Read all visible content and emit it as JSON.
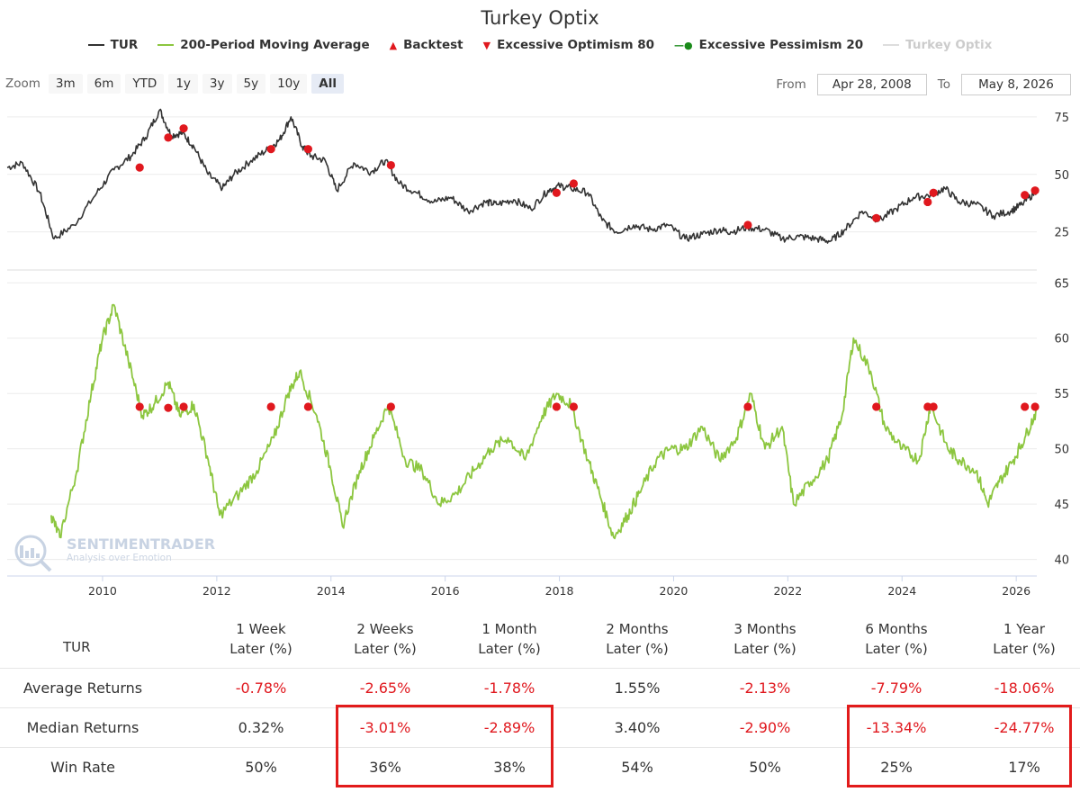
{
  "header": {
    "title": "Turkey Optix",
    "legend": [
      {
        "label": "TUR",
        "color": "#333333",
        "marker": "line",
        "muted": false
      },
      {
        "label": "200-Period Moving Average",
        "color": "#8cc63f",
        "marker": "line",
        "muted": false
      },
      {
        "label": "Backtest",
        "color": "#e0181e",
        "marker": "triangle-up",
        "muted": false
      },
      {
        "label": "Excessive Optimism 80",
        "color": "#e0181e",
        "marker": "triangle-down",
        "muted": false
      },
      {
        "label": "Excessive Pessimism 20",
        "color": "#1a8a1a",
        "marker": "circle",
        "muted": false
      },
      {
        "label": "Turkey Optix",
        "color": "#dddddd",
        "marker": "line",
        "muted": true
      }
    ]
  },
  "toolbar": {
    "zoom_label": "Zoom",
    "zoom_buttons": [
      "3m",
      "6m",
      "YTD",
      "1y",
      "3y",
      "5y",
      "10y",
      "All"
    ],
    "active_zoom": "All",
    "from_label": "From",
    "from_value": "Apr 28, 2008",
    "to_label": "To",
    "to_value": "May 8, 2026"
  },
  "watermark": {
    "brand": "SENTIMENTRADER",
    "tagline": "Analysis over Emotion"
  },
  "chart_data": [
    {
      "type": "line",
      "name": "TUR",
      "color": "#333333",
      "ylim": [
        10,
        82
      ],
      "yticks": [
        "25",
        "50",
        "75"
      ],
      "x_domain": [
        2008.33,
        2026.36
      ],
      "x": [
        2008.33,
        2008.6,
        2008.9,
        2009.15,
        2009.5,
        2009.9,
        2010.2,
        2010.5,
        2010.75,
        2011.0,
        2011.2,
        2011.4,
        2011.6,
        2011.85,
        2012.1,
        2012.3,
        2012.6,
        2012.9,
        2013.1,
        2013.3,
        2013.5,
        2013.65,
        2013.9,
        2014.1,
        2014.4,
        2014.7,
        2014.95,
        2015.2,
        2015.5,
        2015.8,
        2016.1,
        2016.4,
        2016.7,
        2016.9,
        2017.2,
        2017.5,
        2017.8,
        2018.0,
        2018.2,
        2018.5,
        2018.75,
        2019.0,
        2019.3,
        2019.6,
        2019.9,
        2020.2,
        2020.5,
        2020.8,
        2021.0,
        2021.3,
        2021.6,
        2021.9,
        2022.2,
        2022.5,
        2022.75,
        2023.0,
        2023.3,
        2023.6,
        2023.9,
        2024.2,
        2024.5,
        2024.75,
        2025.0,
        2025.3,
        2025.6,
        2025.9,
        2026.1,
        2026.36
      ],
      "y": [
        53,
        55,
        42,
        22,
        28,
        42,
        52,
        58,
        66,
        78,
        67,
        68,
        62,
        50,
        44,
        50,
        56,
        61,
        65,
        75,
        62,
        58,
        56,
        43,
        55,
        51,
        56,
        46,
        42,
        38,
        40,
        34,
        38,
        37,
        39,
        35,
        43,
        45,
        44,
        42,
        30,
        25,
        28,
        26,
        28,
        22,
        24,
        26,
        25,
        27,
        26,
        22,
        23,
        22,
        21,
        26,
        34,
        30,
        35,
        40,
        41,
        44,
        38,
        37,
        32,
        34,
        37,
        43
      ]
    },
    {
      "type": "line",
      "name": "200-Period Moving Average",
      "color": "#8cc63f",
      "ylim": [
        38.5,
        66
      ],
      "yticks": [
        "40",
        "45",
        "50",
        "55",
        "60",
        "65"
      ],
      "xticks": [
        "2010",
        "2012",
        "2014",
        "2016",
        "2018",
        "2020",
        "2022",
        "2024",
        "2026"
      ],
      "x_domain": [
        2008.33,
        2026.36
      ],
      "x": [
        2009.1,
        2009.25,
        2009.55,
        2009.8,
        2010.0,
        2010.2,
        2010.45,
        2010.7,
        2010.9,
        2011.15,
        2011.35,
        2011.6,
        2011.85,
        2012.05,
        2012.4,
        2012.7,
        2013.0,
        2013.25,
        2013.45,
        2013.75,
        2014.0,
        2014.2,
        2014.5,
        2014.75,
        2015.0,
        2015.3,
        2015.6,
        2015.9,
        2016.2,
        2016.5,
        2016.8,
        2017.1,
        2017.4,
        2017.7,
        2017.95,
        2018.2,
        2018.5,
        2018.7,
        2018.95,
        2019.2,
        2019.4,
        2019.7,
        2019.95,
        2020.2,
        2020.5,
        2020.8,
        2021.1,
        2021.35,
        2021.6,
        2021.9,
        2022.1,
        2022.4,
        2022.7,
        2022.95,
        2023.15,
        2023.45,
        2023.7,
        2024.0,
        2024.3,
        2024.5,
        2024.8,
        2025.0,
        2025.3,
        2025.5,
        2025.7,
        2025.95,
        2026.15,
        2026.36
      ],
      "y": [
        44,
        42,
        48,
        55,
        60,
        63,
        58,
        53,
        54,
        56,
        53,
        54,
        49,
        44,
        46,
        48,
        51,
        55,
        57,
        53,
        48,
        43,
        48,
        51,
        54,
        49,
        48,
        45,
        46,
        48,
        50,
        51,
        49,
        53,
        55,
        54,
        49,
        46,
        42,
        44,
        46,
        49,
        50,
        50,
        52,
        49,
        51,
        55,
        50,
        52,
        45,
        47,
        49,
        53,
        60,
        57,
        52,
        50,
        49,
        54,
        50,
        49,
        48,
        45,
        47,
        49,
        51,
        53.5
      ]
    },
    {
      "type": "scatter",
      "name": "Backtest",
      "color": "#e0181e",
      "x": [
        2010.65,
        2011.15,
        2011.42,
        2012.95,
        2013.6,
        2015.05,
        2017.95,
        2018.25,
        2021.3,
        2023.55,
        2024.45,
        2024.55,
        2026.15,
        2026.33
      ],
      "y_optix": [
        53.8,
        53.7,
        53.8,
        53.8,
        53.8,
        53.8,
        53.8,
        53.8,
        53.8,
        53.8,
        53.8,
        53.8,
        53.8,
        53.8
      ],
      "y_tur": [
        53,
        66,
        70,
        61,
        61,
        54,
        42,
        46,
        28,
        31,
        38,
        42,
        41,
        43
      ]
    }
  ],
  "table": {
    "corner_label": "TUR",
    "columns": [
      {
        "line1": "1 Week",
        "line2": "Later (%)"
      },
      {
        "line1": "2 Weeks",
        "line2": "Later (%)"
      },
      {
        "line1": "1 Month",
        "line2": "Later (%)"
      },
      {
        "line1": "2 Months",
        "line2": "Later (%)"
      },
      {
        "line1": "3 Months",
        "line2": "Later (%)"
      },
      {
        "line1": "6 Months",
        "line2": "Later (%)"
      },
      {
        "line1": "1 Year",
        "line2": "Later (%)"
      }
    ],
    "rows": [
      {
        "label": "Average Returns",
        "values": [
          "-0.78%",
          "-2.65%",
          "-1.78%",
          "1.55%",
          "-2.13%",
          "-7.79%",
          "-18.06%"
        ]
      },
      {
        "label": "Median Returns",
        "values": [
          "0.32%",
          "-3.01%",
          "-2.89%",
          "3.40%",
          "-2.90%",
          "-13.34%",
          "-24.77%"
        ]
      },
      {
        "label": "Win Rate",
        "values": [
          "50%",
          "36%",
          "38%",
          "54%",
          "50%",
          "25%",
          "17%"
        ]
      }
    ]
  }
}
